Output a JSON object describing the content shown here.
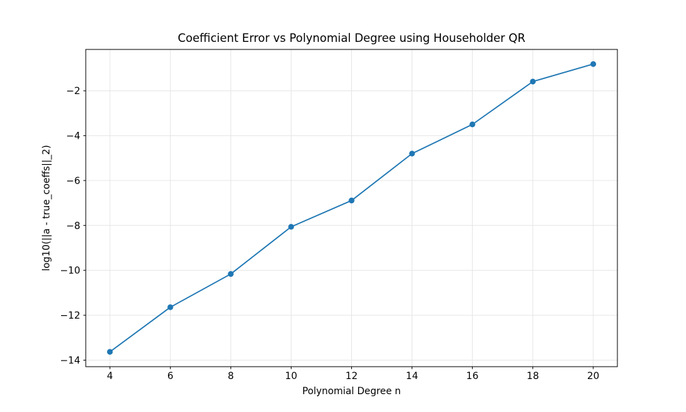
{
  "figure": {
    "background": "#ffffff"
  },
  "chart_data": {
    "type": "line",
    "title": "Coefficient Error vs Polynomial Degree using Householder QR",
    "xlabel": "Polynomial Degree n",
    "ylabel": "log10(||a - true_coeffs||_2)",
    "x": [
      4,
      6,
      8,
      10,
      12,
      14,
      16,
      18,
      20
    ],
    "y": [
      -13.63,
      -11.64,
      -10.16,
      -8.06,
      -6.89,
      -4.8,
      -3.5,
      -1.59,
      -0.81
    ],
    "xlim": [
      3.2,
      20.8
    ],
    "ylim": [
      -14.29,
      -0.16
    ],
    "xticks": [
      4,
      6,
      8,
      10,
      12,
      14,
      16,
      18,
      20
    ],
    "xtick_labels": [
      "4",
      "6",
      "8",
      "10",
      "12",
      "14",
      "16",
      "18",
      "20"
    ],
    "yticks": [
      -14,
      -12,
      -10,
      -8,
      -6,
      -4,
      -2
    ],
    "ytick_labels": [
      "−14",
      "−12",
      "−10",
      "−8",
      "−6",
      "−4",
      "−2"
    ],
    "grid": true,
    "legend": "none",
    "line_color": "#1f77b4",
    "marker": "circle",
    "grid_color": "#e6e6e6",
    "spine_color": "#000000",
    "tick_label_color": "#000000"
  }
}
